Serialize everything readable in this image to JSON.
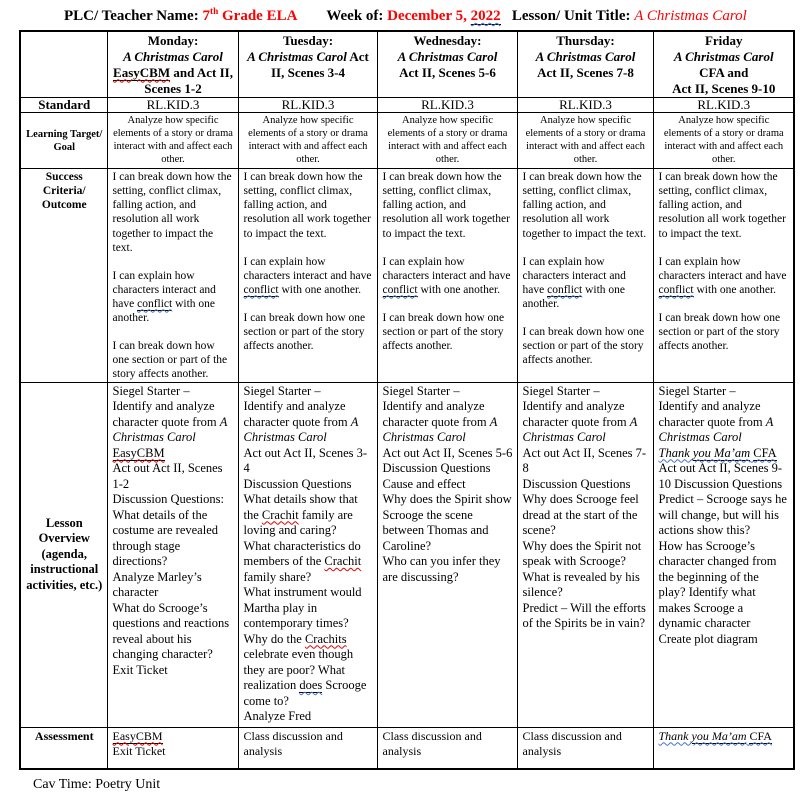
{
  "accent": {
    "red": "#FF0000",
    "spellcheck_red": "#E00000",
    "grammar_blue": "#4472C4"
  },
  "page_header": {
    "segments": [
      {
        "t": "PLC/ Teacher Name: ",
        "b": 1
      },
      {
        "t": "7",
        "b": 1,
        "c": "#FF0000"
      },
      {
        "t": "th",
        "b": 1,
        "c": "#FF0000",
        "sup": 1
      },
      {
        "t": " Grade ELA",
        "b": 1,
        "c": "#FF0000"
      },
      {
        "t": "        ",
        "b": 1
      },
      {
        "t": "Week of: ",
        "b": 1
      },
      {
        "t": "December 5, ",
        "b": 1,
        "c": "#FF0000"
      },
      {
        "t": "2022",
        "b": 1,
        "c": "#FF0000",
        "u": 1,
        "w": "blue"
      },
      {
        "t": "   ",
        "b": 1
      },
      {
        "t": "Lesson/ Unit Title: ",
        "b": 1
      },
      {
        "t": "A Christmas Carol",
        "i": 1,
        "c": "#FF0000"
      }
    ]
  },
  "table": {
    "corner": "",
    "col_headers": [
      [
        {
          "t": "Monday:\n",
          "b": 1
        },
        {
          "t": "A Christmas Carol\n",
          "b": 1,
          "i": 1
        },
        {
          "t": "EasyCBM",
          "b": 1,
          "u": 1,
          "w": "red"
        },
        {
          "t": " and Act II,\nScenes 1-2",
          "b": 1
        }
      ],
      [
        {
          "t": "Tuesday:\n",
          "b": 1
        },
        {
          "t": "A Christmas Carol",
          "b": 1,
          "i": 1
        },
        {
          "t": " Act II, Scenes 3-4",
          "b": 1
        }
      ],
      [
        {
          "t": "Wednesday:\n",
          "b": 1
        },
        {
          "t": "A Christmas Carol\n",
          "b": 1,
          "i": 1
        },
        {
          "t": "Act II, Scenes 5-6",
          "b": 1
        }
      ],
      [
        {
          "t": "Thursday:\n",
          "b": 1
        },
        {
          "t": "A Christmas Carol\n",
          "b": 1,
          "i": 1
        },
        {
          "t": "Act II, Scenes 7-8",
          "b": 1
        }
      ],
      [
        {
          "t": "Friday\n",
          "b": 1
        },
        {
          "t": "A Christmas Carol\n",
          "b": 1,
          "i": 1
        },
        {
          "t": "CFA and\nAct II, Scenes 9-10",
          "b": 1
        }
      ]
    ],
    "standard": {
      "label": "Standard",
      "cells": [
        "RL.KID.3",
        "RL.KID.3",
        "RL.KID.3",
        "RL.KID.3",
        "RL.KID.3"
      ]
    },
    "learning": {
      "label": "Learning Target/ Goal",
      "cells": [
        "Analyze how specific elements of a story or drama interact with and affect each other.",
        "Analyze how specific elements of a story or drama interact with and affect each other.",
        "Analyze how specific elements of a story or drama interact with and affect each other.",
        "Analyze how specific elements of a story or drama interact with and affect each other.",
        "Analyze how specific elements of a story or drama interact with and affect each other."
      ]
    },
    "success": {
      "label": "Success Criteria/ Outcome",
      "cells_rich": [
        [
          {
            "t": "I can break down how the setting, conflict climax, falling action, and resolution all work together to impact the text.\n\nI can explain how characters interact and have "
          },
          {
            "t": "conflict",
            "u": 1,
            "w": "blue"
          },
          {
            "t": " with one another.\n\nI can break down how one section or part of the story affects another."
          }
        ],
        [
          {
            "t": "I can break down how the setting, conflict climax, falling action, and resolution all work together to impact the text.\n\nI can explain how characters interact and have "
          },
          {
            "t": "conflict",
            "u": 1,
            "w": "blue"
          },
          {
            "t": " with one another.\n\nI can break down how one section or part of the story affects another."
          }
        ],
        [
          {
            "t": "I can break down how the setting, conflict climax, falling action, and resolution all work together to impact the text.\n\nI can explain how characters interact and have "
          },
          {
            "t": "conflict",
            "u": 1,
            "w": "blue"
          },
          {
            "t": " with one another.\n\nI can break down how one section or part of the story affects another."
          }
        ],
        [
          {
            "t": "I can break down how the setting, conflict climax, falling action, and resolution all work together to impact the text.\n\nI can explain how characters interact and have "
          },
          {
            "t": "conflict",
            "u": 1,
            "w": "blue"
          },
          {
            "t": " with one another.\n\nI can break down how one section or part of the story affects another."
          }
        ],
        [
          {
            "t": "I can break down how the setting, conflict climax, falling action, and resolution all work together to impact the text.\n\nI can explain how characters interact and have "
          },
          {
            "t": "conflict",
            "u": 1,
            "w": "blue"
          },
          {
            "t": " with one another.\n\nI can break down how one section or part of the story affects another."
          }
        ]
      ]
    },
    "overview": {
      "label": "Lesson Overview (agenda, instructional activities, etc.)",
      "cells_rich": [
        [
          {
            "t": "Siegel Starter –\nIdentify and analyze character quote from "
          },
          {
            "t": "A Christmas Carol",
            "i": 1
          },
          {
            "t": "\n"
          },
          {
            "t": "EasyCBM",
            "u": 1,
            "w": "red"
          },
          {
            "t": "\nAct out Act II, Scenes 1-2\nDiscussion Questions:\nWhat details of the costume are revealed through stage directions?\nAnalyze Marley’s character\nWhat do Scrooge’s questions and reactions reveal about his changing character?\nExit Ticket"
          }
        ],
        [
          {
            "t": "Siegel Starter –\nIdentify and analyze character quote from "
          },
          {
            "t": "A Christmas Carol",
            "i": 1
          },
          {
            "t": "\nAct out Act II, Scenes 3-4\nDiscussion Questions\nWhat details show that the "
          },
          {
            "t": "Crachit",
            "w": "red"
          },
          {
            "t": " family are loving and caring?\nWhat characteristics do members of the "
          },
          {
            "t": "Crachit",
            "w": "red"
          },
          {
            "t": " family share?\nWhat instrument would Martha play in contemporary times?\nWhy do the "
          },
          {
            "t": "Crachits",
            "w": "red"
          },
          {
            "t": " celebrate even though they are poor? What realization "
          },
          {
            "t": "does",
            "u": 1,
            "w": "blue"
          },
          {
            "t": " Scrooge come to?\nAnalyze Fred"
          }
        ],
        [
          {
            "t": "Siegel Starter –\nIdentify and analyze character quote from "
          },
          {
            "t": "A Christmas Carol",
            "i": 1
          },
          {
            "t": "\nAct out Act II, Scenes 5-6\nDiscussion Questions\nCause and effect\nWhy does the Spirit show Scrooge the scene between Thomas and Caroline?\nWho can you infer they are discussing?"
          }
        ],
        [
          {
            "t": "Siegel Starter –\nIdentify and analyze character quote from "
          },
          {
            "t": "A Christmas Carol",
            "i": 1
          },
          {
            "t": "\nAct out Act II, Scenes 7-8\nDiscussion Questions\nWhy does Scrooge feel dread at the start of the scene?\nWhy does the Spirit not speak with Scrooge?\nWhat is revealed by his silence?\nPredict – Will the efforts of the Spirits be in vain?"
          }
        ],
        [
          {
            "t": "Siegel Starter –\nIdentify and analyze character quote from "
          },
          {
            "t": "A Christmas Carol",
            "i": 1
          },
          {
            "t": "\n"
          },
          {
            "t": "Thank ",
            "i": 1,
            "w": "blue"
          },
          {
            "t": "you Ma’am",
            "i": 1,
            "u": 1,
            "w": "blue"
          },
          {
            "t": " ",
            "w": "blue"
          },
          {
            "t": "CFA",
            "u": 1,
            "w": "blue"
          },
          {
            "t": "\nAct out Act II, Scenes 9-10 Discussion Questions\nPredict – Scrooge says he will change, but will his actions show this?\nHow has Scrooge’s character changed from the beginning of the play? Identify what makes Scrooge a dynamic character\nCreate plot diagram"
          }
        ]
      ]
    },
    "assessment": {
      "label": "Assessment",
      "cells_rich": [
        [
          {
            "t": "EasyCBM",
            "u": 1,
            "w": "red"
          },
          {
            "t": "\nExit Ticket"
          }
        ],
        [
          {
            "t": "Class discussion and analysis"
          }
        ],
        [
          {
            "t": "Class discussion and analysis"
          }
        ],
        [
          {
            "t": "Class discussion and analysis"
          }
        ],
        [
          {
            "t": "Thank ",
            "i": 1,
            "w": "blue"
          },
          {
            "t": "you Ma’am",
            "i": 1,
            "u": 1,
            "w": "blue"
          },
          {
            "t": " ",
            "w": "blue"
          },
          {
            "t": "CFA",
            "u": 1,
            "w": "blue"
          }
        ]
      ]
    }
  },
  "footer": {
    "text": "Cav Time: Poetry Unit"
  }
}
